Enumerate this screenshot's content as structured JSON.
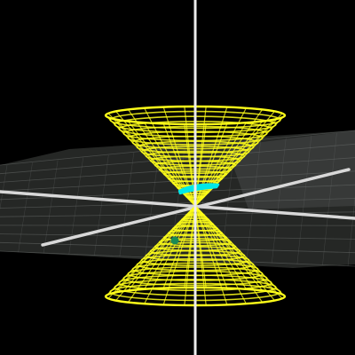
{
  "scene": {
    "background_color": "#000000",
    "cone_color": "#ffff1a",
    "plane_fill_color": "#3a3d3b",
    "plane_line_color": "#6a6e6c",
    "axis_color": "#e6e6e6",
    "cross_section_color": "#00e5e5",
    "point_color": "#1a8a55",
    "objects": [
      "double-cone-surface",
      "cutting-plane",
      "x-axis",
      "y-axis",
      "z-axis",
      "conic-cross-section",
      "point-marker"
    ]
  }
}
